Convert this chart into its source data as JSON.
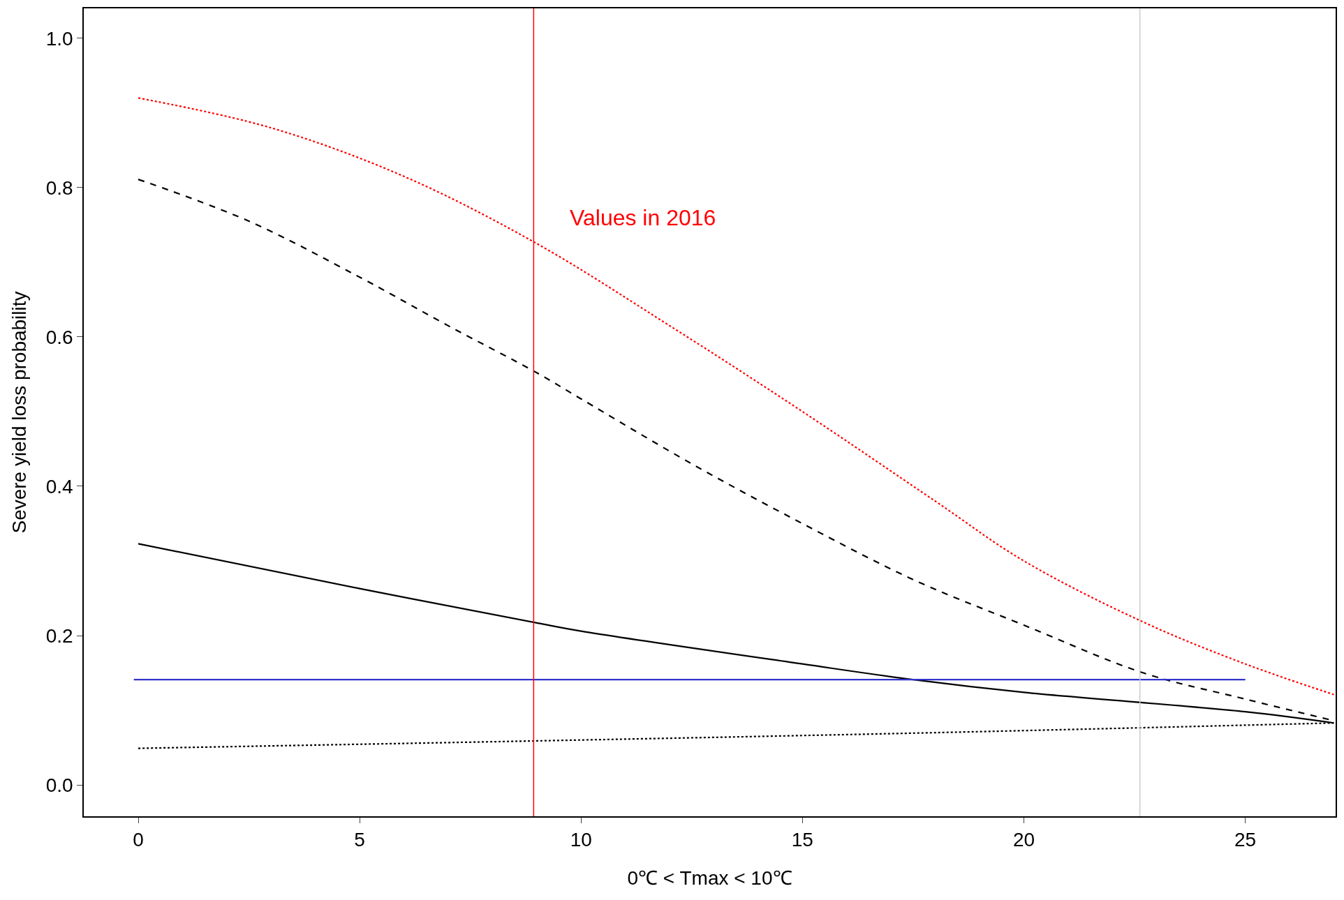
{
  "chart_data": {
    "type": "line",
    "xlabel": "0℃ < Tmax < 10℃",
    "ylabel": "Severe yield loss probability",
    "xlim": [
      -1.23,
      27.04
    ],
    "ylim": [
      -0.042,
      1.04
    ],
    "xticks": [
      0,
      5,
      10,
      15,
      20,
      25
    ],
    "yticks": [
      {
        "value": 0,
        "label": "0.0"
      },
      0.2,
      0.4,
      0.6,
      0.8,
      {
        "value": 1,
        "label": "1.0"
      }
    ],
    "marker": "none",
    "series": [
      {
        "color": "#ff0000",
        "line_style": "dotted",
        "x": [
          0,
          3,
          6,
          9,
          12,
          15,
          18,
          20,
          22.7,
          25,
          27
        ],
        "values": [
          0.92,
          0.88,
          0.815,
          0.725,
          0.615,
          0.5,
          0.38,
          0.3,
          0.218,
          0.162,
          0.121
        ]
      },
      {
        "color": "#000000",
        "line_style": "dashed",
        "x": [
          0,
          2.5,
          5,
          7,
          9,
          10,
          12.5,
          15,
          17.5,
          20,
          22.7,
          25,
          27
        ],
        "values": [
          0.811,
          0.755,
          0.68,
          0.615,
          0.552,
          0.517,
          0.43,
          0.35,
          0.275,
          0.214,
          0.15,
          0.115,
          0.086
        ]
      },
      {
        "color": "#000000",
        "line_style": "solid",
        "x": [
          0,
          5,
          9,
          10,
          15,
          17.5,
          20,
          25,
          27
        ],
        "values": [
          0.323,
          0.263,
          0.217,
          0.206,
          0.162,
          0.141,
          0.124,
          0.098,
          0.083
        ]
      },
      {
        "color": "#000000",
        "line_style": "dotted",
        "x": [
          0,
          9,
          18,
          27
        ],
        "values": [
          0.049,
          0.059,
          0.07,
          0.083
        ]
      },
      {
        "color": "#3333cc",
        "line_style": "solid",
        "x": [
          -0.1,
          25
        ],
        "values": [
          0.141,
          0.141
        ]
      }
    ],
    "ref_lines": [
      {
        "axis": "x",
        "value": 8.93,
        "label": "Values in 2016",
        "color": "#ff0000"
      },
      {
        "axis": "x",
        "value": 22.62,
        "color": "#cccccc"
      }
    ]
  }
}
